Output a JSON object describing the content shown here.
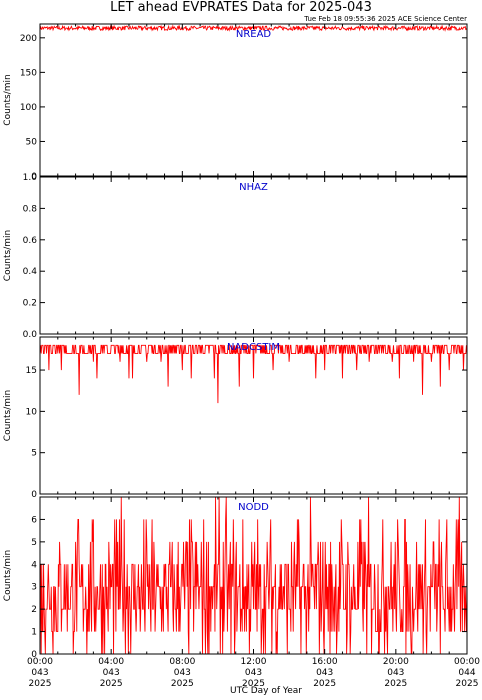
{
  "title": "LET ahead EVPRATES Data for 2025-043",
  "timestamp": "Tue Feb 18 09:55:36 2025 ACE Science Center",
  "xlabel": "UTC Day of Year",
  "colors": {
    "data": "#ff0000",
    "panel_title": "#0000cc",
    "axes": "#000000"
  },
  "chart_data": [
    {
      "type": "line",
      "title": "NREAD",
      "ylabel": "Counts/min",
      "ylim": [
        0,
        220
      ],
      "yticks": [
        "0",
        "50",
        "100",
        "150",
        "200"
      ],
      "baseline": 214,
      "noise": 3,
      "dips": []
    },
    {
      "type": "line",
      "title": "NHAZ",
      "ylabel": "Counts/min",
      "ylim": [
        0,
        1
      ],
      "yticks": [
        "0.0",
        "0.2",
        "0.4",
        "0.6",
        "0.8",
        "1.0"
      ],
      "baseline": 0,
      "noise": 0,
      "dips": []
    },
    {
      "type": "line",
      "title": "NADCSTIM",
      "ylabel": "Counts/min",
      "ylim": [
        0,
        19
      ],
      "yticks": [
        "0",
        "5",
        "10",
        "15"
      ],
      "baseline": 18,
      "band": [
        17,
        18
      ],
      "dips": [
        [
          0.5,
          15
        ],
        [
          1.2,
          15
        ],
        [
          2.2,
          12
        ],
        [
          3.0,
          16
        ],
        [
          3.2,
          14
        ],
        [
          4.5,
          16
        ],
        [
          5.0,
          14
        ],
        [
          5.2,
          14
        ],
        [
          6.0,
          16
        ],
        [
          6.8,
          16
        ],
        [
          7.2,
          13
        ],
        [
          8.0,
          15
        ],
        [
          8.5,
          14
        ],
        [
          9.8,
          14
        ],
        [
          10.0,
          11
        ],
        [
          11.2,
          13
        ],
        [
          12.0,
          14
        ],
        [
          13.1,
          15
        ],
        [
          14.0,
          16
        ],
        [
          15.5,
          14
        ],
        [
          16.0,
          15
        ],
        [
          17.0,
          14
        ],
        [
          17.8,
          15
        ],
        [
          18.5,
          16
        ],
        [
          19.8,
          16
        ],
        [
          20.2,
          14
        ],
        [
          21.0,
          16
        ],
        [
          21.5,
          12
        ],
        [
          22.0,
          16
        ],
        [
          22.5,
          13
        ],
        [
          23.0,
          15
        ],
        [
          23.8,
          15
        ]
      ]
    },
    {
      "type": "line",
      "title": "NODD",
      "ylabel": "Counts/min",
      "ylim": [
        0,
        7
      ],
      "yticks": [
        "0",
        "1",
        "2",
        "3",
        "4",
        "5",
        "6"
      ],
      "range": [
        0,
        7
      ],
      "style": "poisson"
    }
  ],
  "xticks": [
    {
      "time": "00:00",
      "day": "043",
      "year": "2025"
    },
    {
      "time": "04:00",
      "day": "043",
      "year": "2025"
    },
    {
      "time": "08:00",
      "day": "043",
      "year": "2025"
    },
    {
      "time": "12:00",
      "day": "043",
      "year": "2025"
    },
    {
      "time": "16:00",
      "day": "043",
      "year": "2025"
    },
    {
      "time": "20:00",
      "day": "043",
      "year": "2025"
    },
    {
      "time": "00:00",
      "day": "044",
      "year": "2025"
    }
  ]
}
